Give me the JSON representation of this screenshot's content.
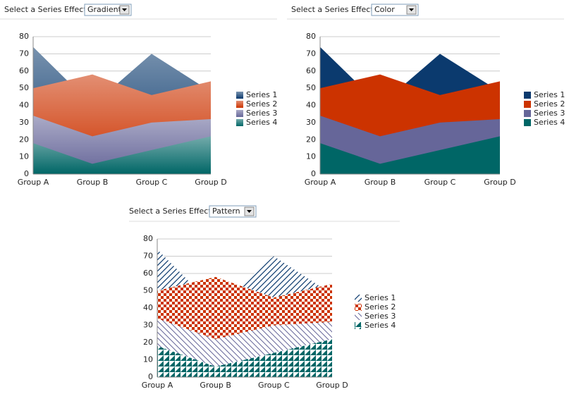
{
  "controls": [
    {
      "label": "Select a Series Effect:",
      "value": "Gradient"
    },
    {
      "label": "Select a Series Effect:",
      "value": "Color"
    },
    {
      "label": "Select a Series Effect:",
      "value": "Pattern"
    }
  ],
  "chart_data": [
    {
      "type": "area",
      "categories": [
        "Group A",
        "Group B",
        "Group C",
        "Group D"
      ],
      "series": [
        {
          "name": "Series 1",
          "color": "#0b3a6e",
          "values": [
            74,
            40,
            70,
            48
          ]
        },
        {
          "name": "Series 2",
          "color": "#cc3300",
          "values": [
            50,
            58,
            46,
            54
          ]
        },
        {
          "name": "Series 3",
          "color": "#666699",
          "values": [
            34,
            22,
            30,
            32
          ]
        },
        {
          "name": "Series 4",
          "color": "#006666",
          "values": [
            18,
            6,
            14,
            22
          ]
        }
      ],
      "ylim": [
        0,
        80
      ],
      "yticks": [
        0,
        10,
        20,
        30,
        40,
        50,
        60,
        70,
        80
      ],
      "grid": true,
      "legend": "right"
    },
    {
      "type": "area",
      "categories": [
        "Group A",
        "Group B",
        "Group C",
        "Group D"
      ],
      "series": [
        {
          "name": "Series 1",
          "color": "#0b3a6e",
          "values": [
            74,
            40,
            70,
            48
          ]
        },
        {
          "name": "Series 2",
          "color": "#cc3300",
          "values": [
            50,
            58,
            46,
            54
          ]
        },
        {
          "name": "Series 3",
          "color": "#666699",
          "values": [
            34,
            22,
            30,
            32
          ]
        },
        {
          "name": "Series 4",
          "color": "#006666",
          "values": [
            18,
            6,
            14,
            22
          ]
        }
      ],
      "ylim": [
        0,
        80
      ],
      "yticks": [
        0,
        10,
        20,
        30,
        40,
        50,
        60,
        70,
        80
      ],
      "grid": true,
      "legend": "right"
    },
    {
      "type": "area",
      "categories": [
        "Group A",
        "Group B",
        "Group C",
        "Group D"
      ],
      "series": [
        {
          "name": "Series 1",
          "color": "#0b3a6e",
          "values": [
            74,
            40,
            70,
            48
          ]
        },
        {
          "name": "Series 2",
          "color": "#cc3300",
          "values": [
            50,
            58,
            46,
            54
          ]
        },
        {
          "name": "Series 3",
          "color": "#666699",
          "values": [
            34,
            22,
            30,
            32
          ]
        },
        {
          "name": "Series 4",
          "color": "#006666",
          "values": [
            18,
            6,
            14,
            22
          ]
        }
      ],
      "ylim": [
        0,
        80
      ],
      "yticks": [
        0,
        10,
        20,
        30,
        40,
        50,
        60,
        70,
        80
      ],
      "grid": true,
      "legend": "right"
    }
  ]
}
